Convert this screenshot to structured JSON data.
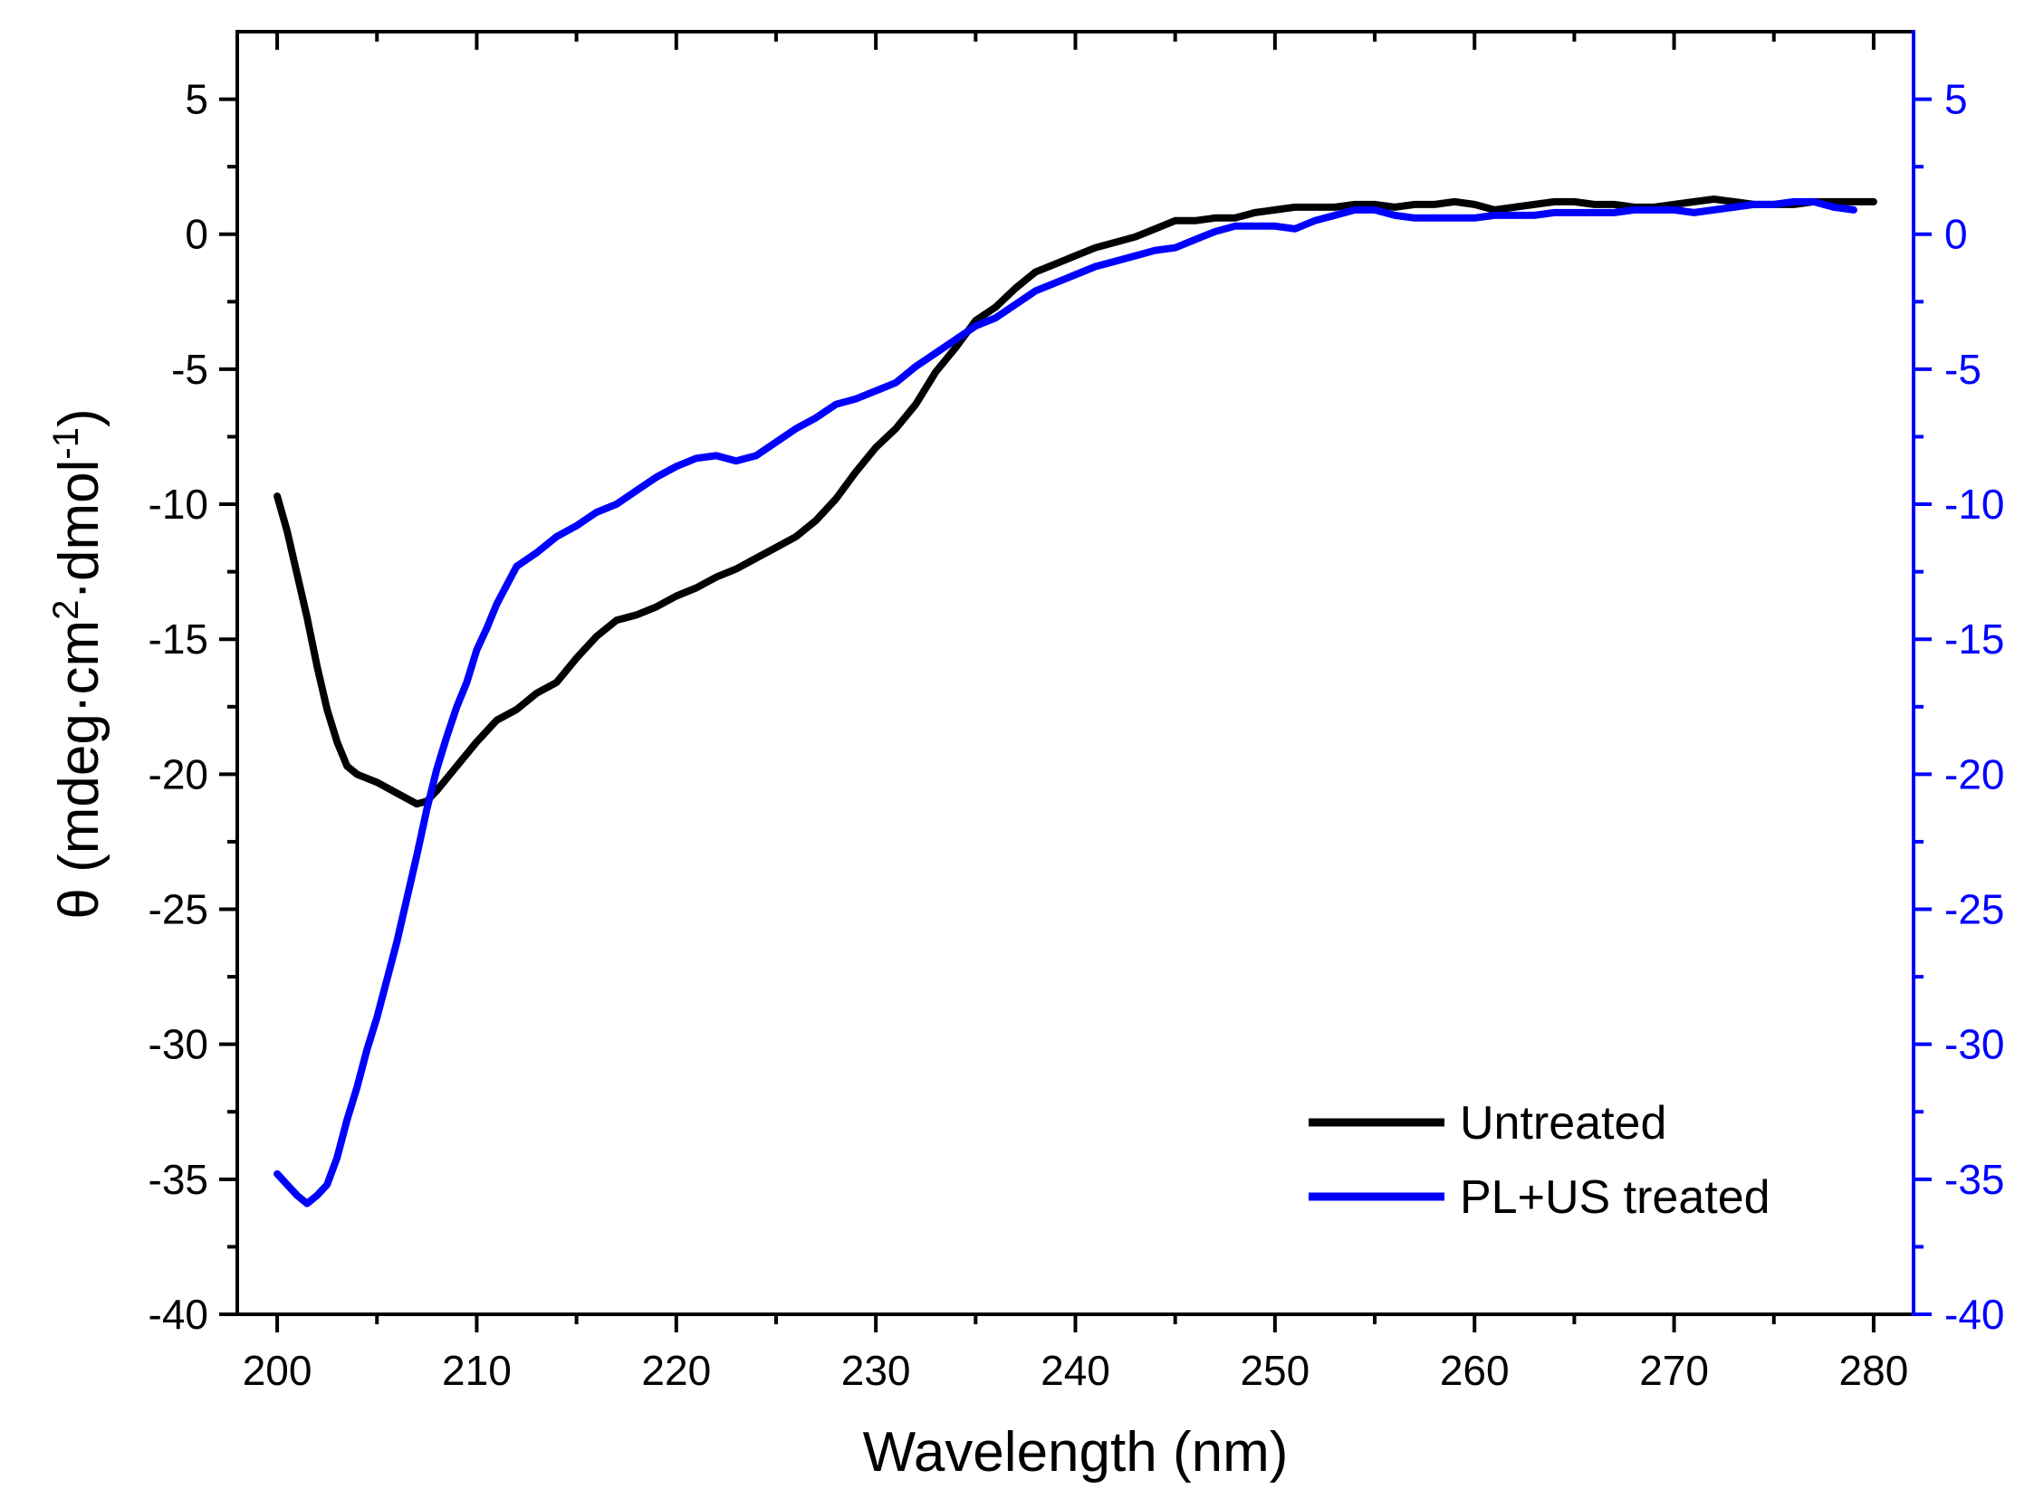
{
  "chart_data": {
    "type": "line",
    "title": "",
    "xlabel": "Wavelength (nm)",
    "ylabel": "θ (mdeg·cm²·dmol⁻¹)",
    "ylabel_parts": [
      "θ (mdeg·cm",
      "2",
      "·dmol",
      "-1",
      ")"
    ],
    "xlim": [
      198,
      282
    ],
    "ylim": [
      -40,
      7.5
    ],
    "y2lim": [
      -40,
      7.5
    ],
    "x_ticks": [
      200,
      210,
      220,
      230,
      240,
      250,
      260,
      270,
      280
    ],
    "x_tick_labels": [
      "200",
      "210",
      "220",
      "230",
      "240",
      "250",
      "260",
      "270",
      "280"
    ],
    "y_ticks": [
      5,
      0,
      -5,
      -10,
      -15,
      -20,
      -25,
      -30,
      -35,
      -40
    ],
    "y_tick_labels": [
      "5",
      "0",
      "-5",
      "-10",
      "-15",
      "-20",
      "-25",
      "-30",
      "-35",
      "-40"
    ],
    "y2_ticks": [
      5,
      0,
      -5,
      -10,
      -15,
      -20,
      -25,
      -30,
      -35,
      -40
    ],
    "y2_tick_labels": [
      "5",
      "0",
      "-5",
      "-10",
      "-15",
      "-20",
      "-25",
      "-30",
      "-35",
      "-40"
    ],
    "legend_position": "bottom-right",
    "grid": false,
    "colors": {
      "axis": "#000000",
      "right_axis": "#0000ff"
    },
    "series": [
      {
        "name": "Untreated",
        "axis": "left",
        "color": "#000000",
        "x": [
          200,
          200.5,
          201,
          201.5,
          202,
          202.5,
          203,
          203.5,
          204,
          205,
          206,
          207,
          207.5,
          208,
          209,
          210,
          211,
          212,
          213,
          214,
          215,
          216,
          217,
          218,
          219,
          220,
          221,
          222,
          223,
          224,
          225,
          226,
          227,
          228,
          229,
          230,
          231,
          232,
          233,
          234,
          235,
          236,
          237,
          238,
          239,
          240,
          241,
          242,
          243,
          244,
          245,
          246,
          247,
          248,
          249,
          250,
          251,
          252,
          253,
          254,
          255,
          256,
          257,
          258,
          259,
          260,
          261,
          262,
          263,
          264,
          265,
          266,
          267,
          268,
          269,
          270,
          271,
          272,
          273,
          274,
          275,
          276,
          277,
          278,
          279,
          280
        ],
        "y": [
          -9.7,
          -11,
          -12.6,
          -14.2,
          -16,
          -17.6,
          -18.8,
          -19.7,
          -20,
          -20.3,
          -20.7,
          -21.1,
          -21,
          -20.6,
          -19.7,
          -18.8,
          -18,
          -17.6,
          -17,
          -16.6,
          -15.7,
          -14.9,
          -14.3,
          -14.1,
          -13.8,
          -13.4,
          -13.1,
          -12.7,
          -12.4,
          -12,
          -11.6,
          -11.2,
          -10.6,
          -9.8,
          -8.8,
          -7.9,
          -7.2,
          -6.3,
          -5.1,
          -4.2,
          -3.2,
          -2.7,
          -2,
          -1.4,
          -1.1,
          -0.8,
          -0.5,
          -0.3,
          -0.1,
          0.2,
          0.5,
          0.5,
          0.6,
          0.6,
          0.8,
          0.9,
          1,
          1,
          1,
          1.1,
          1.1,
          1,
          1.1,
          1.1,
          1.2,
          1.1,
          0.9,
          1,
          1.1,
          1.2,
          1.2,
          1.1,
          1.1,
          1,
          1,
          1.1,
          1.2,
          1.3,
          1.2,
          1.1,
          1.1,
          1.1,
          1.2,
          1.2,
          1.2,
          1.2
        ]
      },
      {
        "name": "PL+US treated",
        "axis": "right",
        "color": "#0000ff",
        "x": [
          200,
          200.5,
          201,
          201.5,
          202,
          202.5,
          203,
          203.5,
          204,
          204.5,
          205,
          205.5,
          206,
          206.5,
          207,
          207.5,
          208,
          208.5,
          209,
          209.5,
          210,
          210.5,
          211,
          211.5,
          212,
          213,
          214,
          215,
          216,
          217,
          218,
          219,
          220,
          221,
          222,
          223,
          224,
          225,
          226,
          227,
          228,
          229,
          230,
          231,
          232,
          233,
          234,
          235,
          236,
          237,
          238,
          239,
          240,
          241,
          242,
          243,
          244,
          245,
          246,
          247,
          248,
          249,
          250,
          251,
          252,
          253,
          254,
          255,
          256,
          257,
          258,
          259,
          260,
          261,
          262,
          263,
          264,
          265,
          266,
          267,
          268,
          269,
          270,
          271,
          272,
          273,
          274,
          275,
          276,
          277,
          278,
          279
        ],
        "y": [
          -34.8,
          -35.2,
          -35.6,
          -35.9,
          -35.6,
          -35.2,
          -34.2,
          -32.8,
          -31.6,
          -30.2,
          -29,
          -27.6,
          -26.2,
          -24.6,
          -23,
          -21.3,
          -19.8,
          -18.6,
          -17.5,
          -16.6,
          -15.4,
          -14.6,
          -13.7,
          -13,
          -12.3,
          -11.8,
          -11.2,
          -10.8,
          -10.3,
          -10,
          -9.5,
          -9,
          -8.6,
          -8.3,
          -8.2,
          -8.4,
          -8.2,
          -7.7,
          -7.2,
          -6.8,
          -6.3,
          -6.1,
          -5.8,
          -5.5,
          -4.9,
          -4.4,
          -3.9,
          -3.4,
          -3.1,
          -2.6,
          -2.1,
          -1.8,
          -1.5,
          -1.2,
          -1,
          -0.8,
          -0.6,
          -0.5,
          -0.2,
          0.1,
          0.3,
          0.3,
          0.3,
          0.2,
          0.5,
          0.7,
          0.9,
          0.9,
          0.7,
          0.6,
          0.6,
          0.6,
          0.6,
          0.7,
          0.7,
          0.7,
          0.8,
          0.8,
          0.8,
          0.8,
          0.9,
          0.9,
          0.9,
          0.8,
          0.9,
          1,
          1.1,
          1.1,
          1.2,
          1.2,
          1,
          0.9
        ]
      }
    ]
  }
}
